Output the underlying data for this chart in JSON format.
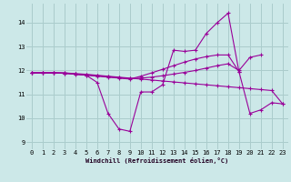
{
  "xlabel": "Windchill (Refroidissement éolien,°C)",
  "background_color": "#cce8e8",
  "grid_color": "#aacccc",
  "line_color": "#990099",
  "xlim": [
    -0.5,
    23.5
  ],
  "ylim": [
    8.7,
    14.8
  ],
  "yticks": [
    9,
    10,
    11,
    12,
    13,
    14
  ],
  "xticks": [
    0,
    1,
    2,
    3,
    4,
    5,
    6,
    7,
    8,
    9,
    10,
    11,
    12,
    13,
    14,
    15,
    16,
    17,
    18,
    19,
    20,
    21,
    22,
    23
  ],
  "series": [
    [
      11.9,
      11.9,
      11.9,
      11.9,
      11.85,
      11.8,
      11.5,
      10.2,
      9.55,
      9.45,
      11.1,
      11.1,
      11.4,
      12.85,
      12.8,
      12.85,
      13.55,
      14.0,
      14.4,
      11.95,
      10.2,
      10.35,
      10.65,
      10.6
    ],
    [
      11.9,
      11.9,
      11.9,
      11.9,
      11.87,
      11.84,
      11.8,
      11.76,
      11.72,
      11.68,
      11.64,
      11.6,
      11.56,
      11.52,
      11.48,
      11.44,
      11.4,
      11.36,
      11.32,
      11.28,
      11.24,
      11.2,
      11.16,
      10.6
    ],
    [
      11.9,
      11.9,
      11.9,
      11.88,
      11.85,
      11.82,
      11.78,
      11.74,
      11.7,
      11.66,
      11.68,
      11.72,
      11.78,
      11.85,
      11.92,
      12.0,
      12.1,
      12.2,
      12.28,
      12.0,
      12.55,
      12.65,
      null,
      null
    ],
    [
      11.9,
      11.9,
      11.9,
      11.88,
      11.84,
      11.8,
      11.76,
      11.72,
      11.68,
      11.64,
      11.76,
      11.9,
      12.05,
      12.2,
      12.35,
      12.48,
      12.58,
      12.65,
      12.65,
      11.95,
      null,
      null,
      null,
      null
    ]
  ]
}
